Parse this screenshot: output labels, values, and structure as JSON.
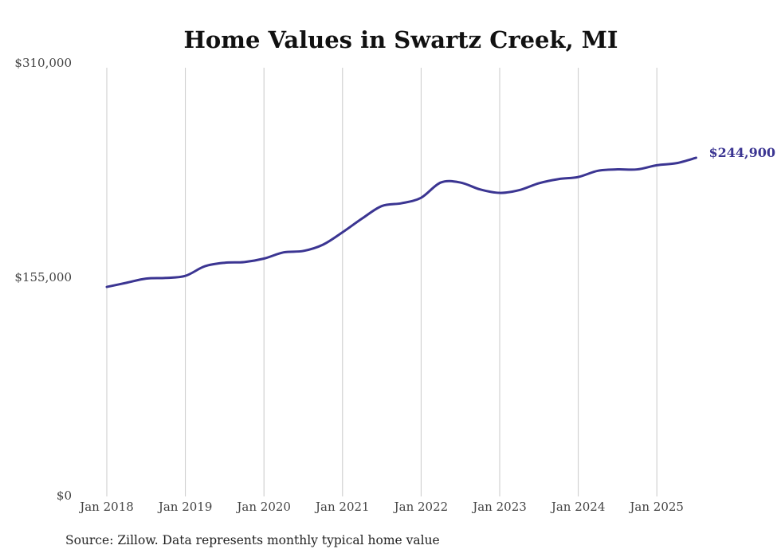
{
  "colors": {
    "line": "#3b3592",
    "grid": "#c8c8c8",
    "text": "#444444"
  },
  "chart_data": {
    "type": "line",
    "title": "Home Values in Swartz Creek, MI",
    "xlabel": "",
    "ylabel": "",
    "ylim": [
      0,
      310000
    ],
    "y_ticks": [
      {
        "value": 0,
        "label": "$0"
      },
      {
        "value": 155000,
        "label": "$155,000"
      },
      {
        "value": 310000,
        "label": "$310,000"
      }
    ],
    "x_ticks": [
      {
        "value": "2018-01",
        "label": "Jan 2018"
      },
      {
        "value": "2019-01",
        "label": "Jan 2019"
      },
      {
        "value": "2020-01",
        "label": "Jan 2020"
      },
      {
        "value": "2021-01",
        "label": "Jan 2021"
      },
      {
        "value": "2022-01",
        "label": "Jan 2022"
      },
      {
        "value": "2023-01",
        "label": "Jan 2023"
      },
      {
        "value": "2024-01",
        "label": "Jan 2024"
      },
      {
        "value": "2025-01",
        "label": "Jan 2025"
      }
    ],
    "grid": "vertical",
    "series": [
      {
        "points": [
          [
            "2018-01",
            151500
          ],
          [
            "2018-04",
            154500
          ],
          [
            "2018-07",
            157500
          ],
          [
            "2018-10",
            158000
          ],
          [
            "2019-01",
            159500
          ],
          [
            "2019-04",
            166500
          ],
          [
            "2019-07",
            169000
          ],
          [
            "2019-10",
            169500
          ],
          [
            "2020-01",
            172000
          ],
          [
            "2020-04",
            176500
          ],
          [
            "2020-07",
            177500
          ],
          [
            "2020-10",
            182000
          ],
          [
            "2021-01",
            191000
          ],
          [
            "2021-04",
            201000
          ],
          [
            "2021-07",
            210000
          ],
          [
            "2021-10",
            212000
          ],
          [
            "2022-01",
            216000
          ],
          [
            "2022-04",
            227000
          ],
          [
            "2022-07",
            227000
          ],
          [
            "2022-10",
            222000
          ],
          [
            "2023-01",
            219500
          ],
          [
            "2023-04",
            221500
          ],
          [
            "2023-07",
            226500
          ],
          [
            "2023-10",
            229500
          ],
          [
            "2024-01",
            231000
          ],
          [
            "2024-04",
            235500
          ],
          [
            "2024-07",
            236500
          ],
          [
            "2024-10",
            236500
          ],
          [
            "2025-01",
            239500
          ],
          [
            "2025-04",
            241000
          ],
          [
            "2025-07",
            244900
          ]
        ],
        "end_label": "$244,900"
      }
    ]
  },
  "source_note": "Source: Zillow. Data represents monthly typical home value"
}
